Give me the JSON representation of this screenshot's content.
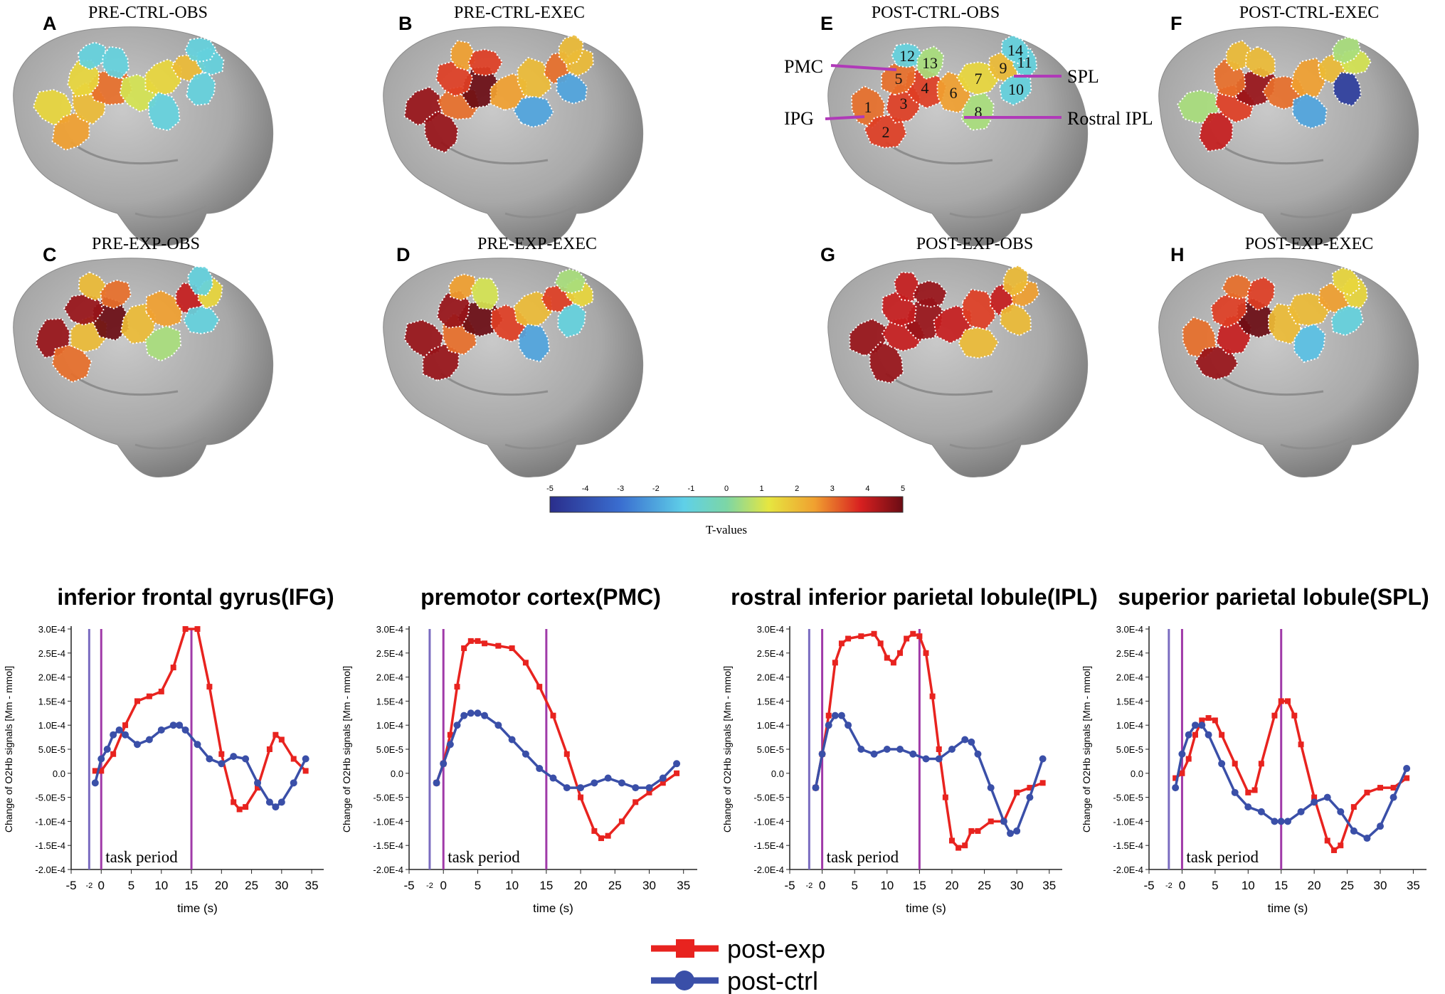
{
  "colors": {
    "post_exp": "#e8231f",
    "post_ctrl": "#3a4fa8",
    "marker_line": "#a03aa8",
    "baseline_line": "#7a6cc0",
    "brain": "#a9a9a9",
    "outline": "#ffffff"
  },
  "brain_panels": [
    {
      "letter": "A",
      "title": "PRE-CTRL-OBS"
    },
    {
      "letter": "B",
      "title": "PRE-CTRL-EXEC"
    },
    {
      "letter": "E",
      "title": "POST-CTRL-OBS"
    },
    {
      "letter": "F",
      "title": "POST-CTRL-EXEC"
    },
    {
      "letter": "C",
      "title": "PRE-EXP-OBS"
    },
    {
      "letter": "D",
      "title": "PRE-EXP-EXEC"
    },
    {
      "letter": "G",
      "title": "POST-EXP-OBS"
    },
    {
      "letter": "H",
      "title": "POST-EXP-EXEC"
    }
  ],
  "channel_numbers": [
    "1",
    "2",
    "3",
    "4",
    "5",
    "6",
    "7",
    "8",
    "9",
    "10",
    "11",
    "12",
    "13",
    "14"
  ],
  "region_labels": {
    "pmc": "PMC",
    "ipg": "IPG",
    "spl": "SPL",
    "rostral_ipl": "Rostral IPL"
  },
  "region_tvalues": [
    [
      1.5,
      2.5,
      2.0,
      3.0,
      1.5,
      1.0,
      1.5,
      -1.0,
      2.0,
      -1.0,
      -1.0,
      -1.0,
      -1.0,
      -1.0
    ],
    [
      4.5,
      4.5,
      3.0,
      5.0,
      3.5,
      2.5,
      2.0,
      -2.0,
      3.0,
      -2.0,
      2.0,
      2.5,
      3.5,
      2.0
    ],
    [
      3.0,
      3.5,
      3.5,
      3.5,
      3.0,
      2.5,
      1.5,
      0.5,
      2.0,
      -1.0,
      -1.0,
      -1.0,
      0.5,
      -1.0
    ],
    [
      0.5,
      4.0,
      3.5,
      4.5,
      3.0,
      3.0,
      2.5,
      -2.0,
      2.0,
      -4.5,
      1.0,
      2.0,
      2.0,
      0.5
    ],
    [
      4.5,
      3.0,
      2.0,
      5.0,
      4.5,
      2.0,
      2.5,
      0.5,
      4.0,
      -1.0,
      1.5,
      2.0,
      3.0,
      -1.0
    ],
    [
      4.5,
      4.5,
      3.0,
      5.0,
      4.5,
      3.5,
      2.0,
      -2.0,
      3.5,
      -1.0,
      1.5,
      2.5,
      1.0,
      0.5
    ],
    [
      4.5,
      4.5,
      4.0,
      4.5,
      4.0,
      4.0,
      3.5,
      2.0,
      4.0,
      2.0,
      2.5,
      4.0,
      4.5,
      2.0
    ],
    [
      3.0,
      4.5,
      4.0,
      5.0,
      3.5,
      2.0,
      2.0,
      -1.5,
      2.5,
      -1.0,
      1.5,
      3.0,
      3.5,
      1.5
    ]
  ],
  "colorbar": {
    "ticks": [
      "-5",
      "-4",
      "-3",
      "-2",
      "-1",
      "0",
      "1",
      "2",
      "3",
      "4",
      "5"
    ],
    "label": "T-values",
    "range": [
      -5,
      5
    ]
  },
  "chart_data": [
    {
      "type": "line",
      "title": "inferior frontal gyrus(IFG)",
      "xlabel": "time (s)",
      "ylabel": "Change of O2Hb signals [Mm - mmol]",
      "xlim": [
        -5,
        37
      ],
      "ylim": [
        -0.0002,
        0.0003
      ],
      "x_ticks": [
        "-5",
        "0",
        "5",
        "10",
        "15",
        "20",
        "25",
        "30",
        "35"
      ],
      "x_tick_values": [
        -5,
        0,
        5,
        10,
        15,
        20,
        25,
        30,
        35
      ],
      "extra_tick": "-2",
      "y_ticks": [
        "3.0E-4",
        "2.5E-4",
        "2.0E-4",
        "1.5E-4",
        "1.0E-4",
        "5.0E-5",
        "0.0",
        "-5.0E-5",
        "-1.0E-4",
        "-1.5E-4",
        "-2.0E-4"
      ],
      "y_tick_values": [
        0.0003,
        0.00025,
        0.0002,
        0.00015,
        0.0001,
        5e-05,
        0,
        -5e-05,
        -0.0001,
        -0.00015,
        -0.0002
      ],
      "markers_x": [
        -2,
        0,
        15
      ],
      "annotation": "task period",
      "series": [
        {
          "name": "post-exp",
          "x": [
            -1,
            0,
            2,
            4,
            6,
            8,
            10,
            12,
            14,
            16,
            18,
            20,
            22,
            23,
            24,
            26,
            28,
            29,
            30,
            32,
            34
          ],
          "values": [
            5e-06,
            5e-06,
            4e-05,
            0.0001,
            0.00015,
            0.00016,
            0.00017,
            0.00022,
            0.0003,
            0.0003,
            0.00018,
            4e-05,
            -6e-05,
            -7.5e-05,
            -7e-05,
            -3e-05,
            5e-05,
            8e-05,
            7e-05,
            3e-05,
            5e-06
          ]
        },
        {
          "name": "post-ctrl",
          "x": [
            -1,
            0,
            1,
            2,
            3,
            4,
            6,
            8,
            10,
            12,
            13,
            14,
            16,
            18,
            20,
            22,
            24,
            26,
            28,
            29,
            30,
            32,
            34
          ],
          "values": [
            -2e-05,
            3e-05,
            5e-05,
            8e-05,
            9e-05,
            8e-05,
            6e-05,
            7e-05,
            9e-05,
            0.0001,
            0.0001,
            9e-05,
            6e-05,
            3e-05,
            2e-05,
            3.5e-05,
            3e-05,
            -2e-05,
            -6e-05,
            -7e-05,
            -6e-05,
            -2e-05,
            3e-05
          ]
        }
      ]
    },
    {
      "type": "line",
      "title": "premotor cortex(PMC)",
      "xlabel": "time (s)",
      "ylabel": "Change of O2Hb signals [Mm - mmol]",
      "xlim": [
        -5,
        37
      ],
      "ylim": [
        -0.0002,
        0.0003
      ],
      "x_ticks": [
        "-5",
        "0",
        "5",
        "10",
        "15",
        "20",
        "25",
        "30",
        "35"
      ],
      "x_tick_values": [
        -5,
        0,
        5,
        10,
        15,
        20,
        25,
        30,
        35
      ],
      "extra_tick": "-2",
      "y_ticks": [
        "3.0E-4",
        "2.5E-4",
        "2.0E-4",
        "1.5E-4",
        "1.0E-4",
        "5.0E-5",
        "0.0",
        "-5.0E-5",
        "-1.0E-4",
        "-1.5E-4",
        "-2.0E-4"
      ],
      "y_tick_values": [
        0.0003,
        0.00025,
        0.0002,
        0.00015,
        0.0001,
        5e-05,
        0,
        -5e-05,
        -0.0001,
        -0.00015,
        -0.0002
      ],
      "markers_x": [
        -2,
        0,
        15
      ],
      "annotation": "task period",
      "series": [
        {
          "name": "post-exp",
          "x": [
            -1,
            0,
            1,
            2,
            3,
            4,
            5,
            6,
            8,
            10,
            12,
            14,
            16,
            18,
            20,
            22,
            23,
            24,
            26,
            28,
            30,
            32,
            34
          ],
          "values": [
            -2e-05,
            2e-05,
            8e-05,
            0.00018,
            0.00026,
            0.000275,
            0.000275,
            0.00027,
            0.000265,
            0.00026,
            0.00023,
            0.00018,
            0.00012,
            4e-05,
            -5e-05,
            -0.00012,
            -0.000135,
            -0.00013,
            -0.0001,
            -6e-05,
            -4e-05,
            -2e-05,
            0.0
          ]
        },
        {
          "name": "post-ctrl",
          "x": [
            -1,
            0,
            1,
            2,
            3,
            4,
            5,
            6,
            8,
            10,
            12,
            14,
            16,
            18,
            20,
            22,
            24,
            26,
            28,
            30,
            32,
            34
          ],
          "values": [
            -2e-05,
            2e-05,
            6e-05,
            0.0001,
            0.00012,
            0.000125,
            0.000125,
            0.00012,
            0.0001,
            7e-05,
            4e-05,
            1e-05,
            -1e-05,
            -3e-05,
            -3e-05,
            -2e-05,
            -1e-05,
            -2e-05,
            -3e-05,
            -3e-05,
            -1e-05,
            2e-05
          ]
        }
      ]
    },
    {
      "type": "line",
      "title": "rostral inferior parietal lobule(IPL)",
      "xlabel": "time (s)",
      "ylabel": "Change of O2Hb signals [Mm - mmol]",
      "xlim": [
        -5,
        37
      ],
      "ylim": [
        -0.0002,
        0.0003
      ],
      "x_ticks": [
        "-5",
        "0",
        "5",
        "10",
        "15",
        "20",
        "25",
        "30",
        "35"
      ],
      "x_tick_values": [
        -5,
        0,
        5,
        10,
        15,
        20,
        25,
        30,
        35
      ],
      "extra_tick": "-2",
      "y_ticks": [
        "3.0E-4",
        "2.5E-4",
        "2.0E-4",
        "1.5E-4",
        "1.0E-4",
        "5.0E-5",
        "0.0",
        "-5.0E-5",
        "-1.0E-4",
        "-1.5E-4",
        "-2.0E-4"
      ],
      "y_tick_values": [
        0.0003,
        0.00025,
        0.0002,
        0.00015,
        0.0001,
        5e-05,
        0,
        -5e-05,
        -0.0001,
        -0.00015,
        -0.0002
      ],
      "markers_x": [
        -2,
        0,
        15
      ],
      "annotation": "task period",
      "series": [
        {
          "name": "post-exp",
          "x": [
            -1,
            0,
            1,
            2,
            3,
            4,
            6,
            8,
            9,
            10,
            11,
            12,
            13,
            14,
            15,
            16,
            17,
            18,
            19,
            20,
            21,
            22,
            23,
            24,
            26,
            28,
            30,
            32,
            34
          ],
          "values": [
            -3e-05,
            4e-05,
            0.00012,
            0.00023,
            0.00027,
            0.00028,
            0.000285,
            0.00029,
            0.00027,
            0.00024,
            0.00023,
            0.00025,
            0.00028,
            0.00029,
            0.000285,
            0.00025,
            0.00016,
            5e-05,
            -5e-05,
            -0.00014,
            -0.000155,
            -0.00015,
            -0.00012,
            -0.00012,
            -0.0001,
            -0.0001,
            -4e-05,
            -3e-05,
            -2e-05
          ]
        },
        {
          "name": "post-ctrl",
          "x": [
            -1,
            0,
            1,
            2,
            3,
            4,
            6,
            8,
            10,
            12,
            14,
            16,
            18,
            20,
            22,
            23,
            24,
            26,
            28,
            29,
            30,
            32,
            34
          ],
          "values": [
            -3e-05,
            4e-05,
            0.0001,
            0.00012,
            0.00012,
            0.0001,
            5e-05,
            4e-05,
            5e-05,
            5e-05,
            4e-05,
            3e-05,
            3e-05,
            5e-05,
            7e-05,
            6.5e-05,
            4e-05,
            -3e-05,
            -0.0001,
            -0.000125,
            -0.00012,
            -5e-05,
            3e-05
          ]
        }
      ]
    },
    {
      "type": "line",
      "title": "superior parietal lobule(SPL)",
      "xlabel": "time (s)",
      "ylabel": "Change of O2Hb signals [Mm - mmol]",
      "xlim": [
        -5,
        37
      ],
      "ylim": [
        -0.0002,
        0.0003
      ],
      "x_ticks": [
        "-5",
        "0",
        "5",
        "10",
        "15",
        "20",
        "25",
        "30",
        "35"
      ],
      "x_tick_values": [
        -5,
        0,
        5,
        10,
        15,
        20,
        25,
        30,
        35
      ],
      "extra_tick": "-2",
      "y_ticks": [
        "3.0E-4",
        "2.5E-4",
        "2.0E-4",
        "1.5E-4",
        "1.0E-4",
        "5.0E-5",
        "0.0",
        "-5.0E-5",
        "-1.0E-4",
        "-1.5E-4",
        "-2.0E-4"
      ],
      "y_tick_values": [
        0.0003,
        0.00025,
        0.0002,
        0.00015,
        0.0001,
        5e-05,
        0,
        -5e-05,
        -0.0001,
        -0.00015,
        -0.0002
      ],
      "markers_x": [
        -2,
        0,
        15
      ],
      "annotation": "task period",
      "series": [
        {
          "name": "post-exp",
          "x": [
            -1,
            0,
            1,
            2,
            3,
            4,
            5,
            6,
            8,
            10,
            11,
            12,
            14,
            15,
            16,
            17,
            18,
            20,
            22,
            23,
            24,
            26,
            28,
            30,
            32,
            34
          ],
          "values": [
            -1e-05,
            0.0,
            3e-05,
            8e-05,
            0.00011,
            0.000115,
            0.00011,
            8e-05,
            2e-05,
            -4e-05,
            -3.5e-05,
            2e-05,
            0.00012,
            0.00015,
            0.00015,
            0.00012,
            6e-05,
            -5e-05,
            -0.00014,
            -0.00016,
            -0.00015,
            -7e-05,
            -4e-05,
            -3e-05,
            -3e-05,
            -1e-05
          ]
        },
        {
          "name": "post-ctrl",
          "x": [
            -1,
            0,
            1,
            2,
            3,
            4,
            6,
            8,
            10,
            12,
            14,
            15,
            16,
            18,
            20,
            22,
            24,
            26,
            28,
            30,
            32,
            34
          ],
          "values": [
            -3e-05,
            4e-05,
            8e-05,
            0.0001,
            0.0001,
            8e-05,
            2e-05,
            -4e-05,
            -7e-05,
            -8e-05,
            -0.0001,
            -0.0001,
            -0.0001,
            -8e-05,
            -6e-05,
            -5e-05,
            -8e-05,
            -0.00012,
            -0.000135,
            -0.00011,
            -5e-05,
            1e-05
          ]
        }
      ]
    }
  ],
  "legend": [
    {
      "label": "post-exp",
      "series": "post-exp"
    },
    {
      "label": "post-ctrl",
      "series": "post-ctrl"
    }
  ]
}
